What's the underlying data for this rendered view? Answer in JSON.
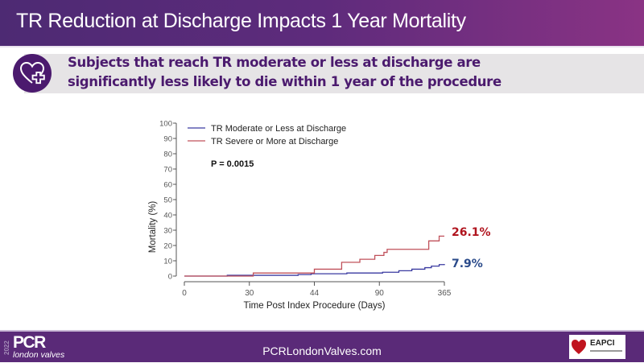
{
  "slide": {
    "title": "TR Reduction at Discharge Impacts 1 Year Mortality",
    "subtitle_line1": "Subjects that reach TR moderate or less at discharge are",
    "subtitle_line2": "significantly  less likely to die within 1 year of the procedure",
    "badge_icon": "heart-plus-icon"
  },
  "footer": {
    "logo_year": "2022",
    "logo_brand": "PCR",
    "logo_sub": "london valves",
    "website": "PCRLondonValves.com",
    "partner_logo": "EAPCI"
  },
  "colors": {
    "title_gradient_start": "#4d2a73",
    "title_gradient_end": "#8a3384",
    "subtitle_text": "#4b1a6e",
    "footer_bg": "#5a2a78",
    "series_moderate": "#3a3aa0",
    "series_severe": "#c0505a",
    "label_severe": "#b0141e",
    "label_moderate": "#2a4a8a"
  },
  "chart_data": {
    "type": "line",
    "title": "",
    "xlabel": "Time Post Index Procedure (Days)",
    "ylabel": "Mortality (%)",
    "x_ticks": [
      "0",
      "30",
      "44",
      "90",
      "365"
    ],
    "y_ticks": [
      0,
      10,
      20,
      30,
      40,
      50,
      60,
      70,
      80,
      90,
      100
    ],
    "ylim": [
      0,
      100
    ],
    "grid": false,
    "legend_position": "top-left",
    "annotation": "P = 0.0015",
    "series": [
      {
        "name": "TR Moderate or Less at Discharge",
        "color": "#3a3aa0",
        "end_label": "7.9%",
        "steps": [
          {
            "x_tick_pos": 0.0,
            "y": 0
          },
          {
            "x_tick_pos": 0.66,
            "y": 0.5
          },
          {
            "x_tick_pos": 1.75,
            "y": 1.0
          },
          {
            "x_tick_pos": 1.95,
            "y": 1.5
          },
          {
            "x_tick_pos": 2.5,
            "y": 2.0
          },
          {
            "x_tick_pos": 3.05,
            "y": 2.5
          },
          {
            "x_tick_pos": 3.3,
            "y": 3.5
          },
          {
            "x_tick_pos": 3.5,
            "y": 4.5
          },
          {
            "x_tick_pos": 3.7,
            "y": 5.5
          },
          {
            "x_tick_pos": 3.8,
            "y": 6.5
          },
          {
            "x_tick_pos": 3.92,
            "y": 7.5
          },
          {
            "x_tick_pos": 4.0,
            "y": 7.9
          }
        ]
      },
      {
        "name": "TR Severe or More at Discharge",
        "color": "#c0505a",
        "end_label": "26.1%",
        "steps": [
          {
            "x_tick_pos": 0.0,
            "y": 0
          },
          {
            "x_tick_pos": 1.06,
            "y": 2.0
          },
          {
            "x_tick_pos": 2.0,
            "y": 4.5
          },
          {
            "x_tick_pos": 2.42,
            "y": 9.0
          },
          {
            "x_tick_pos": 2.7,
            "y": 11.0
          },
          {
            "x_tick_pos": 2.93,
            "y": 13.5
          },
          {
            "x_tick_pos": 3.07,
            "y": 15.5
          },
          {
            "x_tick_pos": 3.12,
            "y": 17.5
          },
          {
            "x_tick_pos": 3.76,
            "y": 23.0
          },
          {
            "x_tick_pos": 3.92,
            "y": 26.1
          },
          {
            "x_tick_pos": 4.0,
            "y": 26.1
          }
        ]
      }
    ]
  }
}
